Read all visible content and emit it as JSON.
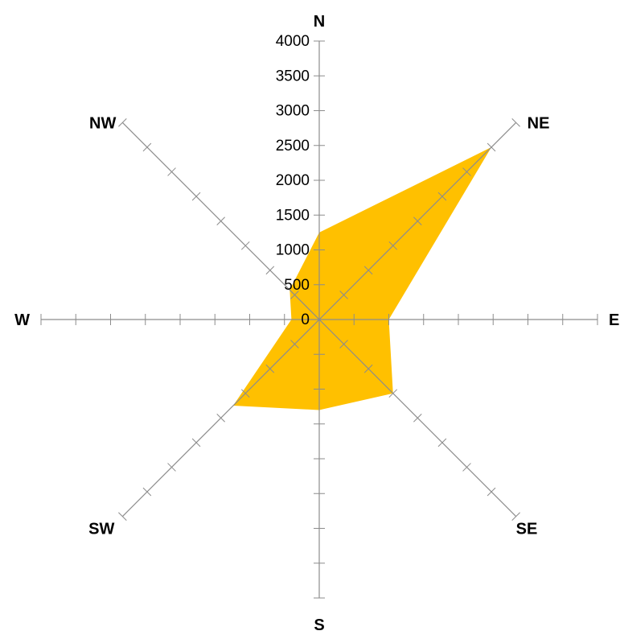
{
  "chart_data": {
    "type": "radar-filled",
    "categories": [
      "N",
      "NE",
      "E",
      "SE",
      "S",
      "SW",
      "W",
      "NW"
    ],
    "series": [
      {
        "values": [
          1250,
          3500,
          1000,
          1500,
          1300,
          1750,
          400,
          600
        ],
        "color": "#ffc000"
      }
    ],
    "rlim": [
      0,
      4000
    ],
    "ticks": [
      0,
      500,
      1000,
      1500,
      2000,
      2500,
      3000,
      3500,
      4000
    ],
    "tick_labels": [
      "0",
      "500",
      "1000",
      "1500",
      "2000",
      "2500",
      "3000",
      "3500",
      "4000"
    ],
    "axis_color": "#8c8c8c",
    "title": "",
    "legend": "none"
  }
}
